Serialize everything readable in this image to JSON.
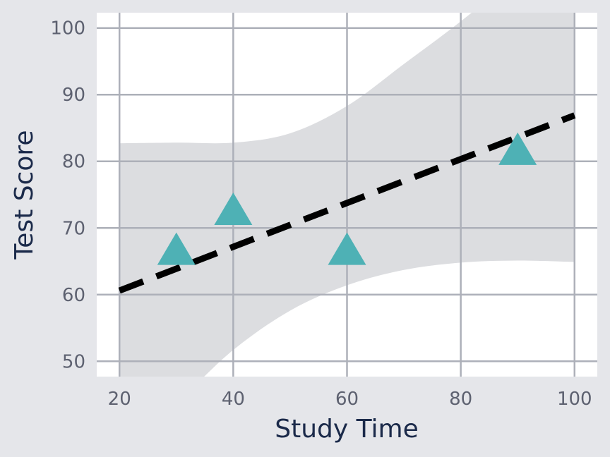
{
  "chart_data": {
    "type": "scatter",
    "xlabel": "Study Time",
    "ylabel": "Test Score",
    "xlim": [
      16,
      104
    ],
    "ylim": [
      47.7,
      102.3
    ],
    "x_ticks": [
      20,
      40,
      60,
      80,
      100
    ],
    "y_ticks": [
      50,
      60,
      70,
      80,
      90,
      100
    ],
    "grid": true,
    "legend": "none",
    "series": [
      {
        "marker": "triangle",
        "color": "#4eb1b5",
        "points": [
          {
            "x": 30,
            "y": 66.5
          },
          {
            "x": 40,
            "y": 72.5
          },
          {
            "x": 60,
            "y": 66.5
          },
          {
            "x": 90,
            "y": 81.5
          }
        ]
      }
    ],
    "trend_line": {
      "style": "dashed",
      "color": "#000000",
      "points": [
        {
          "x": 20,
          "y": 60.6
        },
        {
          "x": 100,
          "y": 86.9
        }
      ]
    },
    "confidence_band": {
      "color": "#dcdde0",
      "x": [
        20,
        30,
        40,
        50,
        60,
        70,
        80,
        90,
        100
      ],
      "upper": [
        82.7,
        82.8,
        82.8,
        84.2,
        88.3,
        94.6,
        101.0,
        108.0,
        115.0
      ],
      "lower": [
        39.0,
        44.0,
        51.7,
        57.6,
        61.4,
        63.7,
        64.8,
        65.1,
        64.9
      ]
    },
    "colors": {
      "background": "#e5e6ea",
      "plot_background": "#ffffff",
      "grid": "#adb0b9"
    }
  }
}
